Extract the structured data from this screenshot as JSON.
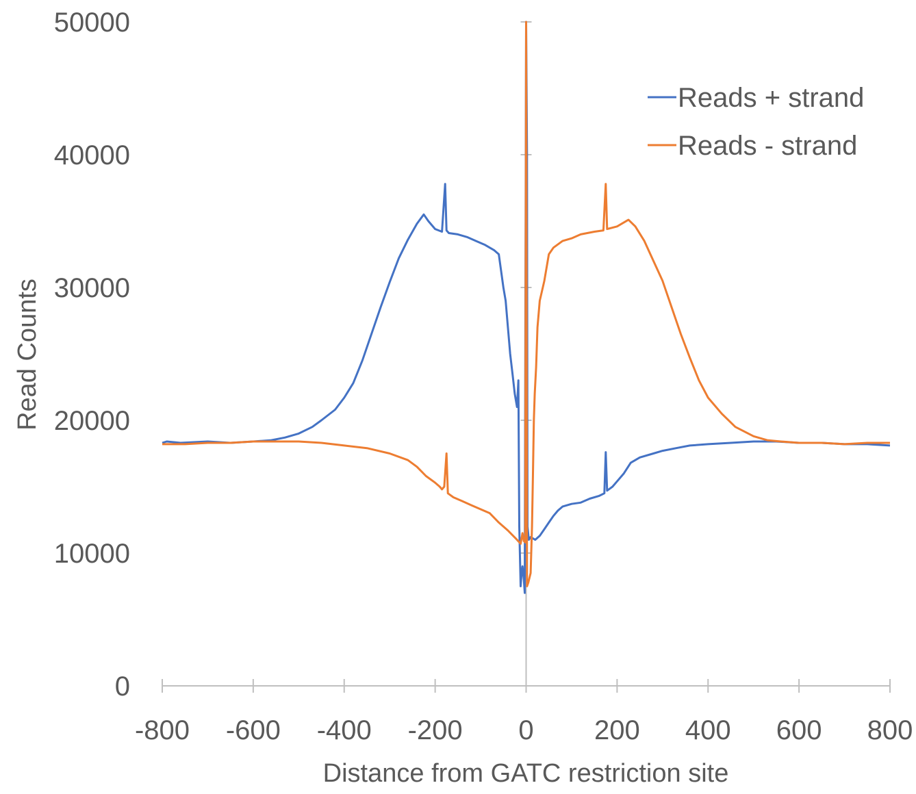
{
  "chart_data": {
    "type": "line",
    "title": "",
    "xlabel": "Distance from GATC restriction site",
    "ylabel": "Read Counts",
    "xlim": [
      -800,
      800
    ],
    "ylim": [
      0,
      50000
    ],
    "x_ticks": [
      "-800",
      "-600",
      "-400",
      "-200",
      "0",
      "200",
      "400",
      "600",
      "800"
    ],
    "y_ticks": [
      "0",
      "10000",
      "20000",
      "30000",
      "40000",
      "50000"
    ],
    "x_tick_values": [
      -800,
      -600,
      -400,
      -200,
      0,
      200,
      400,
      600,
      800
    ],
    "y_tick_values": [
      0,
      10000,
      20000,
      30000,
      40000,
      50000
    ],
    "grid": false,
    "legend_position": "top-right",
    "series": [
      {
        "name": "Reads + strand",
        "color": "#4472C4",
        "points": [
          [
            -800,
            18300
          ],
          [
            -790,
            18400
          ],
          [
            -760,
            18300
          ],
          [
            -700,
            18400
          ],
          [
            -650,
            18300
          ],
          [
            -600,
            18400
          ],
          [
            -560,
            18500
          ],
          [
            -530,
            18700
          ],
          [
            -500,
            19000
          ],
          [
            -470,
            19500
          ],
          [
            -450,
            20000
          ],
          [
            -420,
            20800
          ],
          [
            -400,
            21700
          ],
          [
            -380,
            22800
          ],
          [
            -360,
            24500
          ],
          [
            -340,
            26500
          ],
          [
            -320,
            28500
          ],
          [
            -300,
            30400
          ],
          [
            -280,
            32200
          ],
          [
            -260,
            33600
          ],
          [
            -240,
            34800
          ],
          [
            -225,
            35500
          ],
          [
            -215,
            35000
          ],
          [
            -200,
            34400
          ],
          [
            -185,
            34200
          ],
          [
            -178,
            37800
          ],
          [
            -175,
            34300
          ],
          [
            -170,
            34100
          ],
          [
            -150,
            34000
          ],
          [
            -130,
            33800
          ],
          [
            -110,
            33500
          ],
          [
            -90,
            33200
          ],
          [
            -70,
            32800
          ],
          [
            -60,
            32500
          ],
          [
            -50,
            30000
          ],
          [
            -45,
            29000
          ],
          [
            -40,
            27000
          ],
          [
            -35,
            25000
          ],
          [
            -30,
            23500
          ],
          [
            -25,
            22000
          ],
          [
            -20,
            21000
          ],
          [
            -17,
            23000
          ],
          [
            -15,
            12000
          ],
          [
            -12,
            7500
          ],
          [
            -10,
            8500
          ],
          [
            -8,
            9000
          ],
          [
            -5,
            8000
          ],
          [
            -3,
            7000
          ],
          [
            0,
            50000
          ],
          [
            2,
            40000
          ],
          [
            3,
            12000
          ],
          [
            6,
            11000
          ],
          [
            10,
            11200
          ],
          [
            20,
            11000
          ],
          [
            30,
            11300
          ],
          [
            40,
            11800
          ],
          [
            50,
            12300
          ],
          [
            60,
            12800
          ],
          [
            70,
            13200
          ],
          [
            80,
            13500
          ],
          [
            100,
            13700
          ],
          [
            120,
            13800
          ],
          [
            140,
            14100
          ],
          [
            160,
            14300
          ],
          [
            172,
            14500
          ],
          [
            175,
            17600
          ],
          [
            178,
            14700
          ],
          [
            190,
            15000
          ],
          [
            200,
            15400
          ],
          [
            215,
            16000
          ],
          [
            230,
            16800
          ],
          [
            250,
            17200
          ],
          [
            280,
            17500
          ],
          [
            300,
            17700
          ],
          [
            330,
            17900
          ],
          [
            360,
            18100
          ],
          [
            400,
            18200
          ],
          [
            450,
            18300
          ],
          [
            500,
            18400
          ],
          [
            550,
            18400
          ],
          [
            600,
            18300
          ],
          [
            650,
            18300
          ],
          [
            700,
            18200
          ],
          [
            750,
            18200
          ],
          [
            800,
            18100
          ]
        ]
      },
      {
        "name": "Reads - strand",
        "color": "#ED7D31",
        "points": [
          [
            -800,
            18200
          ],
          [
            -750,
            18200
          ],
          [
            -700,
            18300
          ],
          [
            -650,
            18300
          ],
          [
            -600,
            18400
          ],
          [
            -550,
            18400
          ],
          [
            -500,
            18400
          ],
          [
            -450,
            18300
          ],
          [
            -400,
            18100
          ],
          [
            -350,
            17900
          ],
          [
            -300,
            17500
          ],
          [
            -260,
            17000
          ],
          [
            -240,
            16500
          ],
          [
            -220,
            15800
          ],
          [
            -200,
            15300
          ],
          [
            -190,
            15000
          ],
          [
            -185,
            14800
          ],
          [
            -180,
            15000
          ],
          [
            -175,
            17500
          ],
          [
            -172,
            14500
          ],
          [
            -160,
            14200
          ],
          [
            -140,
            13900
          ],
          [
            -120,
            13600
          ],
          [
            -100,
            13300
          ],
          [
            -80,
            13000
          ],
          [
            -60,
            12300
          ],
          [
            -40,
            11700
          ],
          [
            -20,
            11000
          ],
          [
            -12,
            10700
          ],
          [
            -8,
            11500
          ],
          [
            -5,
            10900
          ],
          [
            -2,
            10800
          ],
          [
            0,
            50000
          ],
          [
            2,
            7500
          ],
          [
            5,
            7800
          ],
          [
            10,
            8500
          ],
          [
            13,
            12000
          ],
          [
            15,
            16000
          ],
          [
            17,
            20000
          ],
          [
            19,
            22000
          ],
          [
            22,
            24000
          ],
          [
            25,
            27000
          ],
          [
            30,
            29000
          ],
          [
            40,
            30500
          ],
          [
            50,
            32500
          ],
          [
            60,
            33000
          ],
          [
            80,
            33500
          ],
          [
            100,
            33700
          ],
          [
            120,
            34000
          ],
          [
            150,
            34200
          ],
          [
            170,
            34300
          ],
          [
            175,
            37800
          ],
          [
            178,
            34400
          ],
          [
            200,
            34600
          ],
          [
            225,
            35100
          ],
          [
            240,
            34600
          ],
          [
            260,
            33500
          ],
          [
            280,
            32000
          ],
          [
            300,
            30500
          ],
          [
            320,
            28500
          ],
          [
            340,
            26500
          ],
          [
            360,
            24700
          ],
          [
            380,
            23000
          ],
          [
            400,
            21700
          ],
          [
            430,
            20500
          ],
          [
            460,
            19500
          ],
          [
            500,
            18800
          ],
          [
            530,
            18500
          ],
          [
            560,
            18400
          ],
          [
            600,
            18300
          ],
          [
            650,
            18300
          ],
          [
            700,
            18200
          ],
          [
            750,
            18300
          ],
          [
            800,
            18300
          ]
        ]
      }
    ]
  }
}
